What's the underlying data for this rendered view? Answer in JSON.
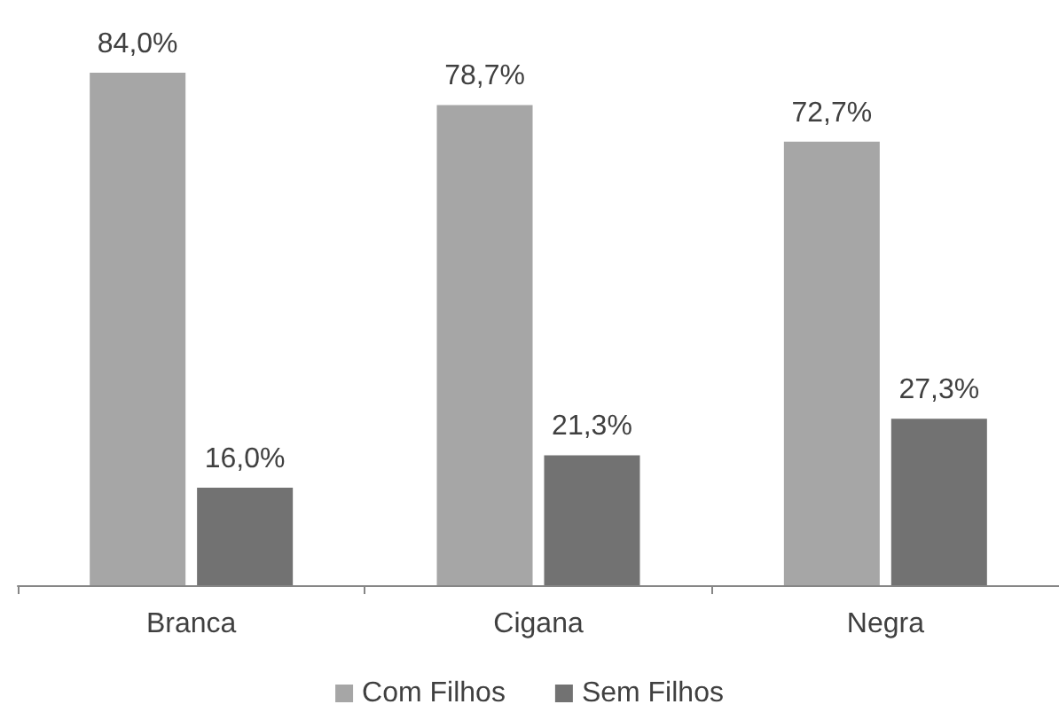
{
  "chart_data": {
    "type": "bar",
    "categories": [
      "Branca",
      "Cigana",
      "Negra"
    ],
    "series": [
      {
        "name": "Com Filhos",
        "color": "#a6a6a6",
        "values": [
          84.0,
          78.7,
          72.7
        ],
        "value_labels": [
          "84,0%",
          "78,7%",
          "72,7%"
        ]
      },
      {
        "name": "Sem Filhos",
        "color": "#727272",
        "values": [
          16.0,
          21.3,
          27.3
        ],
        "value_labels": [
          "16,0%",
          "21,3%",
          "27,3%"
        ]
      }
    ],
    "legend": "bottom",
    "tick_labels": "x"
  }
}
